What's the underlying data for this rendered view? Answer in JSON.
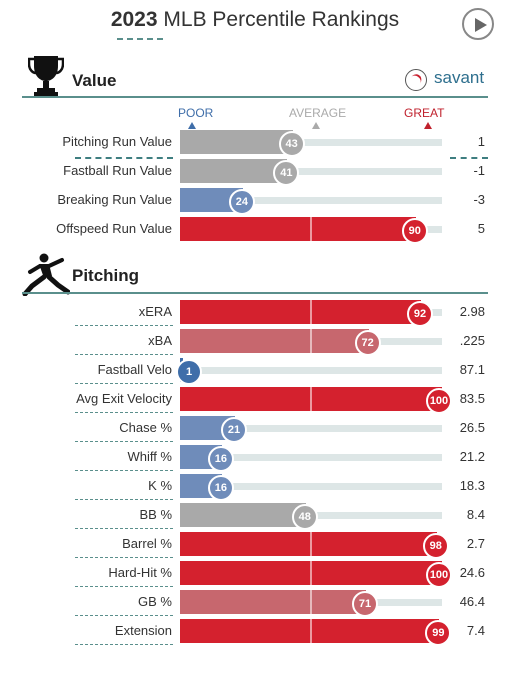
{
  "header": {
    "year": "2023",
    "title": "MLB Percentile Rankings"
  },
  "icons": {
    "play": "play-icon",
    "value_section": "trophy-icon",
    "pitching_section": "pitcher-icon",
    "brand": "baseball-icon"
  },
  "brand": {
    "name": "savant"
  },
  "scale": {
    "poor": "POOR",
    "average": "AVERAGE",
    "great": "GREAT"
  },
  "colors": {
    "poor": "#3f6ea9",
    "below_avg": "#6f8cba",
    "average": "#a9a9a9",
    "above_avg": "#c7676e",
    "great": "#d4212e",
    "track": "#dde6e6",
    "accent": "#5a8f8c"
  },
  "sections": [
    {
      "label": "Value",
      "rows": [
        {
          "label": "Pitching Run Value",
          "percentile": 43,
          "value": "1"
        },
        {
          "label": "Fastball Run Value",
          "percentile": 41,
          "value": "-1"
        },
        {
          "label": "Breaking Run Value",
          "percentile": 24,
          "value": "-3"
        },
        {
          "label": "Offspeed Run Value",
          "percentile": 90,
          "value": "5"
        }
      ]
    },
    {
      "label": "Pitching",
      "rows": [
        {
          "label": "xERA",
          "percentile": 92,
          "value": "2.98"
        },
        {
          "label": "xBA",
          "percentile": 72,
          "value": ".225"
        },
        {
          "label": "Fastball Velo",
          "percentile": 1,
          "value": "87.1"
        },
        {
          "label": "Avg Exit Velocity",
          "percentile": 100,
          "value": "83.5"
        },
        {
          "label": "Chase %",
          "percentile": 21,
          "value": "26.5"
        },
        {
          "label": "Whiff %",
          "percentile": 16,
          "value": "21.2"
        },
        {
          "label": "K %",
          "percentile": 16,
          "value": "18.3"
        },
        {
          "label": "BB %",
          "percentile": 48,
          "value": "8.4"
        },
        {
          "label": "Barrel %",
          "percentile": 98,
          "value": "2.7"
        },
        {
          "label": "Hard-Hit %",
          "percentile": 100,
          "value": "24.6"
        },
        {
          "label": "GB %",
          "percentile": 71,
          "value": "46.4"
        },
        {
          "label": "Extension",
          "percentile": 99,
          "value": "7.4"
        }
      ]
    }
  ]
}
